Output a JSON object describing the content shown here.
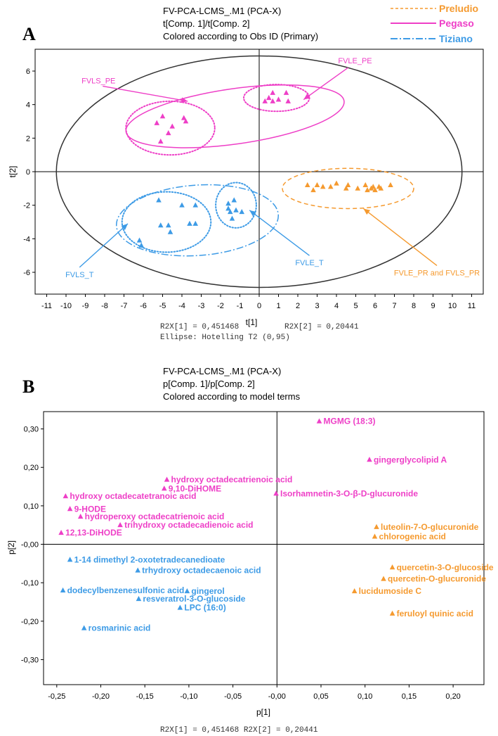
{
  "colors": {
    "preludio": "#f59a2f",
    "pegaso": "#ee3fc7",
    "tiziano": "#3d9be6",
    "axis": "#000000"
  },
  "panel_a": {
    "letter": "A",
    "title_lines": [
      "FV-PCA-LCMS_.M1 (PCA-X)",
      "t[Comp. 1]/t[Comp. 2]",
      "Colored according to Obs ID (Primary)"
    ],
    "footer_r2x1": "R2X[1] = 0,451468",
    "footer_r2x2": "R2X[2] = 0,20441",
    "footer_ellipse": "Ellipse: Hotelling T2 (0,95)",
    "legend": [
      {
        "name": "Preludio",
        "color": "#f59a2f",
        "style": "dashed"
      },
      {
        "name": "Pegaso",
        "color": "#ee3fc7",
        "style": "solid"
      },
      {
        "name": "Tiziano",
        "color": "#3d9be6",
        "style": "dashdot"
      }
    ]
  },
  "panel_b": {
    "letter": "B",
    "title_lines": [
      "FV-PCA-LCMS_.M1 (PCA-X)",
      "p[Comp. 1]/p[Comp. 2]",
      "Colored according to model terms"
    ],
    "footer": "R2X[1] = 0,451468 R2X[2] = 0,20441"
  },
  "chart_data": [
    {
      "type": "scatter",
      "title": "FV-PCA-LCMS_.M1 (PCA-X) t[Comp. 1]/t[Comp. 2]",
      "xlabel": "t[1]",
      "ylabel": "t[2]",
      "xlim": [
        -11.6,
        11.6
      ],
      "ylim": [
        -7.3,
        7.3
      ],
      "xticks": [
        "-11",
        "-10",
        "-9",
        "-8",
        "-7",
        "-6",
        "-5",
        "-4",
        "-3",
        "-2",
        "-1",
        "0",
        "1",
        "2",
        "3",
        "4",
        "5",
        "6",
        "7",
        "8",
        "9",
        "10",
        "11"
      ],
      "yticks": [
        "6",
        "4",
        "2",
        "0",
        "-2",
        "-4",
        "-6"
      ],
      "series": [
        {
          "name": "Pegaso",
          "color": "#ee3fc7",
          "points": [
            [
              -5.3,
              2.9
            ],
            [
              -5.0,
              3.3
            ],
            [
              -4.7,
              2.3
            ],
            [
              -4.5,
              2.7
            ],
            [
              -5.1,
              1.8
            ],
            [
              -3.9,
              3.2
            ],
            [
              -3.8,
              3.0
            ],
            [
              0.3,
              4.2
            ],
            [
              0.5,
              4.4
            ],
            [
              0.7,
              4.7
            ],
            [
              0.7,
              4.2
            ],
            [
              1.0,
              4.3
            ],
            [
              1.4,
              4.7
            ],
            [
              1.5,
              4.2
            ]
          ]
        },
        {
          "name": "Tiziano",
          "color": "#3d9be6",
          "points": [
            [
              -6.2,
              -4.1
            ],
            [
              -6.1,
              -4.4
            ],
            [
              -5.2,
              -1.7
            ],
            [
              -5.1,
              -3.2
            ],
            [
              -4.7,
              -3.2
            ],
            [
              -4.6,
              -3.6
            ],
            [
              -4.0,
              -2.0
            ],
            [
              -3.6,
              -3.1
            ],
            [
              -3.3,
              -3.1
            ],
            [
              -3.3,
              -2.0
            ],
            [
              -1.6,
              -1.9
            ],
            [
              -1.5,
              -2.4
            ],
            [
              -1.4,
              -2.8
            ],
            [
              -1.3,
              -1.7
            ],
            [
              -1.2,
              -2.3
            ],
            [
              -0.9,
              -2.4
            ],
            [
              -1.6,
              -2.2
            ]
          ]
        },
        {
          "name": "Preludio",
          "color": "#f59a2f",
          "points": [
            [
              2.5,
              -0.8
            ],
            [
              2.8,
              -1.1
            ],
            [
              3.0,
              -0.8
            ],
            [
              3.3,
              -0.9
            ],
            [
              3.7,
              -0.9
            ],
            [
              4.0,
              -0.7
            ],
            [
              4.5,
              -1.0
            ],
            [
              4.6,
              -0.8
            ],
            [
              5.1,
              -1.0
            ],
            [
              5.5,
              -0.8
            ],
            [
              5.6,
              -1.1
            ],
            [
              5.9,
              -0.9
            ],
            [
              6.0,
              -1.1
            ],
            [
              6.2,
              -0.9
            ],
            [
              6.3,
              -1.0
            ],
            [
              6.8,
              -0.8
            ],
            [
              5.8,
              -1.0
            ]
          ]
        }
      ],
      "ellipses": [
        {
          "group": "Hotelling T2 (0,95)",
          "color": "#333333",
          "style": "solid",
          "cx": 0,
          "cy": 0,
          "rx": 10.5,
          "ry": 6.9
        },
        {
          "group": "Pegaso",
          "color": "#ee3fc7",
          "style": "solid",
          "cx": -1.25,
          "cy": 3.3,
          "rx": 5.7,
          "ry": 1.65,
          "angle": 8
        },
        {
          "group": "Pegaso FVLS_PE",
          "color": "#ee3fc7",
          "style": "dotted",
          "cx": -4.6,
          "cy": 2.6,
          "rx": 2.3,
          "ry": 1.6
        },
        {
          "group": "Pegaso FVLE_PE",
          "color": "#ee3fc7",
          "style": "dotted",
          "cx": 0.9,
          "cy": 4.4,
          "rx": 1.7,
          "ry": 0.8
        },
        {
          "group": "Tiziano",
          "color": "#3d9be6",
          "style": "dashdot",
          "cx": -3.2,
          "cy": -2.9,
          "rx": 4.2,
          "ry": 2.1,
          "angle": 4
        },
        {
          "group": "Tiziano FVLS_T",
          "color": "#3d9be6",
          "style": "dotted",
          "cx": -4.8,
          "cy": -3.0,
          "rx": 2.3,
          "ry": 1.8
        },
        {
          "group": "Tiziano FVLE_T",
          "color": "#3d9be6",
          "style": "dotted",
          "cx": -1.2,
          "cy": -2.0,
          "rx": 1.05,
          "ry": 1.35
        },
        {
          "group": "Preludio",
          "color": "#f59a2f",
          "style": "dashed",
          "cx": 4.6,
          "cy": -1.0,
          "rx": 3.4,
          "ry": 1.2
        }
      ],
      "annotations": [
        {
          "text": "FVLS_PE",
          "color": "#ee3fc7",
          "from": [
            -8.1,
            5.1
          ],
          "to": [
            -3.7,
            4.2
          ]
        },
        {
          "text": "FVLE_PE",
          "color": "#ee3fc7",
          "from": [
            4.6,
            6.2
          ],
          "to": [
            2.3,
            4.3
          ]
        },
        {
          "text": "FVLS_T",
          "color": "#3d9be6",
          "from": [
            -9.3,
            -5.7
          ],
          "to": [
            -6.8,
            -3.1
          ]
        },
        {
          "text": "FVLE_T",
          "color": "#3d9be6",
          "from": [
            2.6,
            -5.0
          ],
          "to": [
            -0.5,
            -2.3
          ]
        },
        {
          "text": "FVLE_PR and FVLS_PR",
          "color": "#f59a2f",
          "from": [
            9.2,
            -5.6
          ],
          "to": [
            5.4,
            -2.2
          ]
        }
      ]
    },
    {
      "type": "scatter",
      "title": "FV-PCA-LCMS_.M1 (PCA-X) p[Comp. 1]/p[Comp. 2]",
      "xlabel": "p[1]",
      "ylabel": "p[2]",
      "xlim": [
        -0.265,
        0.235
      ],
      "ylim": [
        -0.365,
        0.345
      ],
      "xticks": [
        "-0,25",
        "-0,20",
        "-0,15",
        "-0,10",
        "-0,05",
        "-0,00",
        "0,05",
        "0,10",
        "0,15",
        "0,20"
      ],
      "yticks": [
        "0,30",
        "0,20",
        "0,10",
        "-0,00",
        "-0,10",
        "-0,20",
        "-0,30"
      ],
      "series": [
        {
          "name": "Pegaso",
          "color": "#ee3fc7",
          "points": [
            {
              "label": "MGMG (18:3)",
              "x": 0.048,
              "y": 0.32
            },
            {
              "label": "gingerglycolipid A",
              "x": 0.105,
              "y": 0.22
            },
            {
              "label": "hydroxy octadecatrienoic acid",
              "x": -0.125,
              "y": 0.168
            },
            {
              "label": "9,10-DiHOME",
              "x": -0.128,
              "y": 0.145
            },
            {
              "label": "Isorhamnetin-3-O-β-D-glucuronide",
              "x": -0.001,
              "y": 0.132
            },
            {
              "label": "hydroxy octadecatetranoic acid",
              "x": -0.24,
              "y": 0.125
            },
            {
              "label": "9-HODE",
              "x": -0.235,
              "y": 0.092
            },
            {
              "label": "hydroperoxy octadecatrienoic acid",
              "x": -0.223,
              "y": 0.072
            },
            {
              "label": "trihydroxy octadecadienoic acid",
              "x": -0.178,
              "y": 0.05
            },
            {
              "label": "12,13-DiHODE",
              "x": -0.245,
              "y": 0.03
            }
          ]
        },
        {
          "name": "Tiziano",
          "color": "#3d9be6",
          "points": [
            {
              "label": "1-14 dimethyl 2-oxotetradecanedioate",
              "x": -0.235,
              "y": -0.04
            },
            {
              "label": "trhydroxy octadecaenoic acid",
              "x": -0.158,
              "y": -0.068
            },
            {
              "label": "dodecylbenzenesulfonic acid",
              "x": -0.243,
              "y": -0.12
            },
            {
              "label": "gingerol",
              "x": -0.102,
              "y": -0.122
            },
            {
              "label": "resveratrol-3-O-glucoside",
              "x": -0.157,
              "y": -0.142
            },
            {
              "label": "LPC (16:0)",
              "x": -0.11,
              "y": -0.165
            },
            {
              "label": "rosmarinic acid",
              "x": -0.219,
              "y": -0.218
            }
          ]
        },
        {
          "name": "Preludio",
          "color": "#f59a2f",
          "points": [
            {
              "label": "luteolin-7-O-glucuronide",
              "x": 0.113,
              "y": 0.045
            },
            {
              "label": "chlorogenic acid",
              "x": 0.111,
              "y": 0.02
            },
            {
              "label": "quercetin-3-O-glucoside",
              "x": 0.131,
              "y": -0.06
            },
            {
              "label": "quercetin-O-glucuronide",
              "x": 0.121,
              "y": -0.09
            },
            {
              "label": "lucidumoside C",
              "x": 0.088,
              "y": -0.122
            },
            {
              "label": "feruloyl quinic acid",
              "x": 0.131,
              "y": -0.18
            }
          ]
        }
      ]
    }
  ]
}
